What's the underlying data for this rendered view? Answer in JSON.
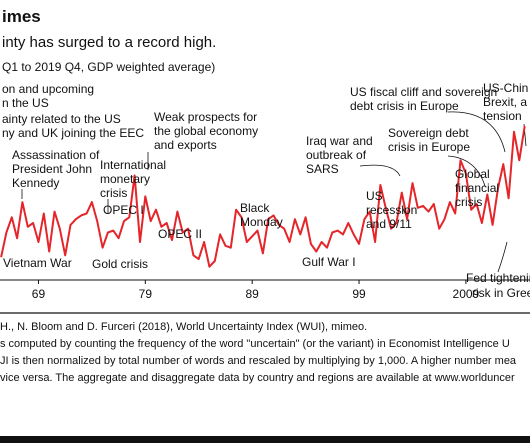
{
  "header": {
    "title": "imes",
    "subtitle": "inty has surged to a record high.",
    "note": "Q1 to 2019 Q4, GDP weighted average)"
  },
  "chart_data": {
    "type": "line",
    "xlabel": "",
    "ylabel": "",
    "xlim": [
      1965.4,
      2015
    ],
    "ylim": [
      0,
      1
    ],
    "x_ticks": [
      {
        "value": 1969,
        "label": "69"
      },
      {
        "value": 1979,
        "label": "79"
      },
      {
        "value": 1989,
        "label": "89"
      },
      {
        "value": 1999,
        "label": "99"
      },
      {
        "value": 2009,
        "label": "2009"
      }
    ],
    "series": [
      {
        "color": "#e5252a",
        "x": [
          1965.5,
          1966.0,
          1966.5,
          1967.0,
          1967.5,
          1968.0,
          1968.5,
          1969.0,
          1969.5,
          1970.0,
          1970.5,
          1971.0,
          1971.5,
          1972.0,
          1972.5,
          1973.0,
          1973.5,
          1974.0,
          1974.5,
          1975.0,
          1975.5,
          1976.0,
          1976.5,
          1977.0,
          1977.5,
          1978.0,
          1978.5,
          1979.0,
          1979.5,
          1980.0,
          1980.5,
          1981.0,
          1981.5,
          1982.0,
          1982.5,
          1983.0,
          1983.5,
          1984.0,
          1984.5,
          1985.0,
          1985.5,
          1986.0,
          1986.5,
          1987.0,
          1987.5,
          1988.0,
          1988.5,
          1989.0,
          1989.5,
          1990.0,
          1990.5,
          1991.0,
          1991.5,
          1992.0,
          1992.5,
          1993.0,
          1993.5,
          1994.0,
          1994.5,
          1995.0,
          1995.5,
          1996.0,
          1996.5,
          1997.0,
          1997.5,
          1998.0,
          1998.5,
          1999.0,
          1999.5,
          2000.0,
          2000.5,
          2001.0,
          2001.5,
          2002.0,
          2002.5,
          2003.0,
          2003.5,
          2004.0,
          2004.5,
          2005.0,
          2005.5,
          2006.0,
          2006.5,
          2007.0,
          2007.5,
          2008.0,
          2008.5,
          2009.0,
          2009.5,
          2010.0,
          2010.5,
          2011.0,
          2011.5,
          2012.0,
          2012.5,
          2013.0,
          2013.5,
          2014.0,
          2014.5
        ],
        "y": [
          0.12,
          0.25,
          0.33,
          0.22,
          0.41,
          0.28,
          0.3,
          0.2,
          0.35,
          0.15,
          0.36,
          0.27,
          0.13,
          0.29,
          0.32,
          0.34,
          0.35,
          0.41,
          0.31,
          0.17,
          0.25,
          0.26,
          0.22,
          0.31,
          0.33,
          0.55,
          0.2,
          0.44,
          0.31,
          0.37,
          0.28,
          0.3,
          0.21,
          0.36,
          0.25,
          0.27,
          0.13,
          0.11,
          0.2,
          0.07,
          0.1,
          0.24,
          0.18,
          0.17,
          0.37,
          0.33,
          0.2,
          0.23,
          0.26,
          0.14,
          0.32,
          0.34,
          0.29,
          0.27,
          0.2,
          0.32,
          0.24,
          0.33,
          0.19,
          0.15,
          0.2,
          0.17,
          0.25,
          0.26,
          0.24,
          0.3,
          0.24,
          0.19,
          0.32,
          0.36,
          0.2,
          0.5,
          0.38,
          0.27,
          0.3,
          0.46,
          0.32,
          0.51,
          0.38,
          0.39,
          0.36,
          0.4,
          0.27,
          0.32,
          0.41,
          0.35,
          0.63,
          0.56,
          0.37,
          0.4,
          0.3,
          0.45,
          0.29,
          0.48,
          0.61,
          0.43,
          0.78,
          0.63,
          0.81
        ]
      }
    ]
  },
  "annotations": {
    "top_left_1": "on and upcoming",
    "top_left_2": "n the US",
    "uncertainty_1": "ainty related to the US",
    "uncertainty_2": "ny and UK joining the EEC",
    "assassination_1": "Assassination of",
    "assassination_2": "President John",
    "assassination_3": "Kennedy",
    "vietnam": "Vietnam War",
    "gold": "Gold crisis",
    "opec1": "OPEC I",
    "intl_1": "International",
    "intl_2": "monetary",
    "intl_3": "crisis",
    "opec2": "OPEC II",
    "weak_1": "Weak prospects for",
    "weak_2": "the global economy",
    "weak_3": "and exports",
    "black_1": "Black",
    "black_2": "Monday",
    "gulf": "Gulf War I",
    "iraq_1": "Iraq war and",
    "iraq_2": "outbreak of",
    "iraq_3": "SARS",
    "recession_1": "US",
    "recession_2": "recession",
    "recession_3": "and 9/11",
    "fiscal_1": "US fiscal cliff and sovereign",
    "fiscal_2": "debt crisis in Europe",
    "sovereign_1": "Sovereign debt",
    "sovereign_2": "crisis in Europe",
    "gfc_1": "Global",
    "gfc_2": "financial",
    "gfc_3": "crisis",
    "china_1": "US-Chin",
    "china_2": "Brexit, a",
    "china_3": "tension",
    "fed_1": "Fed tightening",
    "fed_2": "risk in Greece"
  },
  "footer": {
    "line1": "H., N. Bloom and D. Furceri (2018), World Uncertainty Index (WUI), mimeo.",
    "line2": "s computed by counting the frequency of the word \"uncertain\" (or the variant) in Economist Intelligence U",
    "line3": "JI is then normalized by total number of words and rescaled by multiplying by 1,000. A higher number mea",
    "line4": "vice versa. The aggregate and disaggregate data by country and regions are available at www.worlduncer"
  },
  "colors": {
    "line": "#e5252a",
    "text": "#111111",
    "rule": "#111111"
  }
}
